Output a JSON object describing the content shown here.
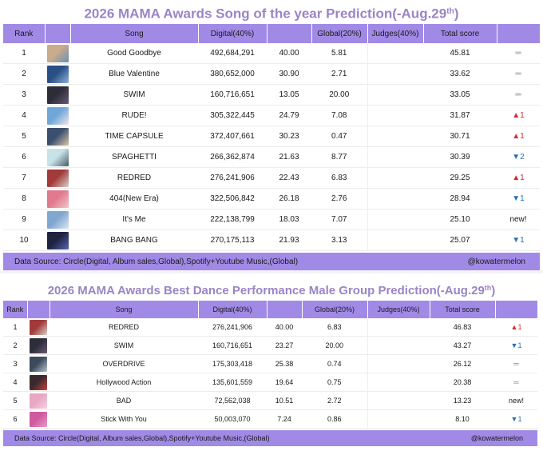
{
  "table1": {
    "title": "2026 MAMA Awards Song of the year Prediction(-Aug.29",
    "title_sup": "th",
    "title_end": ")",
    "headers": [
      "Rank",
      "",
      "Song",
      "Digital(40%)",
      "",
      "Global(20%)",
      "Judges(40%)",
      "Total score",
      ""
    ],
    "rows": [
      {
        "rank": "1",
        "art": "beach-art",
        "song": "Good Goodbye",
        "digital": "492,684,291",
        "dscore": "40.00",
        "global": "5.81",
        "judges": "",
        "total": "45.81",
        "change": "═",
        "dir": "same"
      },
      {
        "rank": "2",
        "art": "blue-art",
        "song": "Blue Valentine",
        "digital": "380,652,000",
        "dscore": "30.90",
        "global": "2.71",
        "judges": "",
        "total": "33.62",
        "change": "═",
        "dir": "same"
      },
      {
        "rank": "3",
        "art": "group-art",
        "song": "SWIM",
        "digital": "160,716,651",
        "dscore": "13.05",
        "global": "20.00",
        "judges": "",
        "total": "33.05",
        "change": "═",
        "dir": "same"
      },
      {
        "rank": "4",
        "art": "rude-art",
        "song": "RUDE!",
        "digital": "305,322,445",
        "dscore": "24.79",
        "global": "7.08",
        "judges": "",
        "total": "31.87",
        "change": "▲1",
        "dir": "up"
      },
      {
        "rank": "5",
        "art": "capsule-art",
        "song": "TIME CAPSULE",
        "digital": "372,407,661",
        "dscore": "30.23",
        "global": "0.47",
        "judges": "",
        "total": "30.71",
        "change": "▲1",
        "dir": "up"
      },
      {
        "rank": "6",
        "art": "spaghetti-art",
        "song": "SPAGHETTI",
        "digital": "266,362,874",
        "dscore": "21.63",
        "global": "8.77",
        "judges": "",
        "total": "30.39",
        "change": "▼2",
        "dir": "down"
      },
      {
        "rank": "7",
        "art": "redred-art",
        "song": "REDRED",
        "digital": "276,241,906",
        "dscore": "22.43",
        "global": "6.83",
        "judges": "",
        "total": "29.25",
        "change": "▲1",
        "dir": "up"
      },
      {
        "rank": "8",
        "art": "pink-art",
        "song": "404(New Era)",
        "digital": "322,506,842",
        "dscore": "26.18",
        "global": "2.76",
        "judges": "",
        "total": "28.94",
        "change": "▼1",
        "dir": "down"
      },
      {
        "rank": "9",
        "art": "sky-art",
        "song": "It's Me",
        "digital": "222,138,799",
        "dscore": "18.03",
        "global": "7.07",
        "judges": "",
        "total": "25.10",
        "change": "new!",
        "dir": "new"
      },
      {
        "rank": "10",
        "art": "bang-art",
        "song": "BANG BANG",
        "digital": "270,175,113",
        "dscore": "21.93",
        "global": "3.13",
        "judges": "",
        "total": "25.07",
        "change": "▼1",
        "dir": "down"
      }
    ],
    "footer_source": "Data Source: Circle(Digital, Album sales,Global),Spotify+Youtube Music,(Global)",
    "footer_handle": "@kowatermelon"
  },
  "table2": {
    "title": "2026 MAMA Awards Best Dance Performance Male Group Prediction(-Aug.29",
    "title_sup": "th",
    "title_end": ")",
    "headers": [
      "Rank",
      "",
      "Song",
      "Digital(40%)",
      "",
      "Global(20%)",
      "Judges(40%)",
      "Total score",
      ""
    ],
    "rows": [
      {
        "rank": "1",
        "art": "redred-art",
        "song": "REDRED",
        "digital": "276,241,906",
        "dscore": "40.00",
        "global": "6.83",
        "judges": "",
        "total": "46.83",
        "change": "▲1",
        "dir": "up"
      },
      {
        "rank": "2",
        "art": "group-art",
        "song": "SWIM",
        "digital": "160,716,651",
        "dscore": "23.27",
        "global": "20.00",
        "judges": "",
        "total": "43.27",
        "change": "▼1",
        "dir": "down"
      },
      {
        "rank": "3",
        "art": "overdrive-art",
        "song": "OVERDRIVE",
        "digital": "175,303,418",
        "dscore": "25.38",
        "global": "0.74",
        "judges": "",
        "total": "26.12",
        "change": "═",
        "dir": "same"
      },
      {
        "rank": "4",
        "art": "hollywood-art",
        "song": "Hollywood Action",
        "digital": "135,601,559",
        "dscore": "19.64",
        "global": "0.75",
        "judges": "",
        "total": "20.38",
        "change": "═",
        "dir": "same"
      },
      {
        "rank": "5",
        "art": "bad-art",
        "song": "BAD",
        "digital": "72,562,038",
        "dscore": "10.51",
        "global": "2.72",
        "judges": "",
        "total": "13.23",
        "change": "new!",
        "dir": "new"
      },
      {
        "rank": "6",
        "art": "stick-art",
        "song": "Stick With You",
        "digital": "50,003,070",
        "dscore": "7.24",
        "global": "0.86",
        "judges": "",
        "total": "8.10",
        "change": "▼1",
        "dir": "down"
      }
    ],
    "footer_source": "Data Source: Circle(Digital, Album sales,Global),Spotify+Youtube Music,(Global)",
    "footer_handle": "@kowatermelon"
  },
  "colors": {
    "title": "#9b84c6",
    "header_bg": "#a08ae6",
    "up": "#d8282f",
    "down": "#2b6fb5"
  },
  "art_colors": {
    "beach-art": [
      "#c9ab8e",
      "#6a8fb0"
    ],
    "blue-art": [
      "#2a4f86",
      "#8fb1d9"
    ],
    "group-art": [
      "#2d2d3a",
      "#6b5a74"
    ],
    "rude-art": [
      "#6fa8d8",
      "#f2e3ea"
    ],
    "capsule-art": [
      "#3b4f6e",
      "#d9c6a8"
    ],
    "spaghetti-art": [
      "#c7e3e8",
      "#4a5b66"
    ],
    "redred-art": [
      "#a23a3a",
      "#d9d2c9"
    ],
    "pink-art": [
      "#e07a8f",
      "#f3c4cc"
    ],
    "sky-art": [
      "#7fa7d0",
      "#d9e6f2"
    ],
    "bang-art": [
      "#1e2340",
      "#5966b3"
    ],
    "overdrive-art": [
      "#3c4a5c",
      "#b8c2cf"
    ],
    "hollywood-art": [
      "#3a2a2e",
      "#c2433d"
    ],
    "bad-art": [
      "#e8a7c4",
      "#f6d1e2"
    ],
    "stick-art": [
      "#d05aa0",
      "#ea9cc9"
    ]
  }
}
